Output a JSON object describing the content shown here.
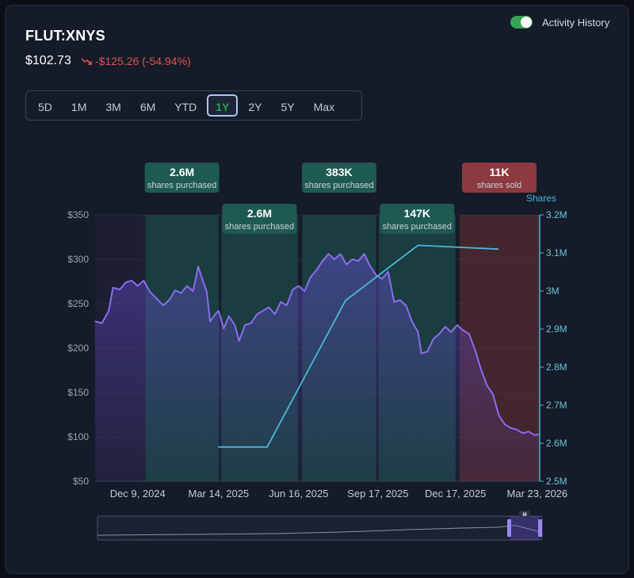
{
  "header": {
    "ticker": "FLUT:XNYS",
    "price": "$102.73",
    "change": "-$125.26 (-54.94%)",
    "change_icon": "trend-down-icon",
    "toggle_label": "Activity History",
    "toggle_on": true
  },
  "ranges": {
    "items": [
      "5D",
      "1M",
      "3M",
      "6M",
      "YTD",
      "1Y",
      "2Y",
      "5Y",
      "Max"
    ],
    "active": "1Y"
  },
  "colors": {
    "price_line": "#8b6cf0",
    "shares_line": "#4ab8d8",
    "purchase_band": "#1f5a52",
    "sold_band": "#6b2f35",
    "down": "#e05252"
  },
  "chart_data": {
    "type": "line",
    "x_ticks": [
      "Dec 9, 2024",
      "Mar 14, 2025",
      "Jun 16, 2025",
      "Sep 17, 2025",
      "Dec 17, 2025",
      "Mar 23, 2026"
    ],
    "x_range": [
      "2024-10-20",
      "2026-03-25"
    ],
    "y_left": {
      "ticks": [
        "$350",
        "$300",
        "$250",
        "$200",
        "$150",
        "$100",
        "$50"
      ],
      "range": [
        50,
        350
      ]
    },
    "y_right": {
      "label": "Shares",
      "ticks": [
        "3.2M",
        "3.1M",
        "3M",
        "2.9M",
        "2.8M",
        "2.7M",
        "2.6M",
        "2.5M"
      ],
      "range": [
        2500000,
        3200000
      ]
    },
    "series": [
      {
        "unit": "USD",
        "points": [
          [
            "2024-10-20",
            230
          ],
          [
            "2024-10-28",
            228
          ],
          [
            "2024-11-05",
            242
          ],
          [
            "2024-11-10",
            268
          ],
          [
            "2024-11-18",
            266
          ],
          [
            "2024-11-25",
            274
          ],
          [
            "2024-12-02",
            276
          ],
          [
            "2024-12-09",
            270
          ],
          [
            "2024-12-16",
            276
          ],
          [
            "2024-12-23",
            264
          ],
          [
            "2025-01-01",
            255
          ],
          [
            "2025-01-08",
            248
          ],
          [
            "2025-01-15",
            254
          ],
          [
            "2025-01-22",
            265
          ],
          [
            "2025-01-29",
            262
          ],
          [
            "2025-02-05",
            270
          ],
          [
            "2025-02-12",
            264
          ],
          [
            "2025-02-18",
            292
          ],
          [
            "2025-02-22",
            280
          ],
          [
            "2025-02-28",
            264
          ],
          [
            "2025-03-04",
            230
          ],
          [
            "2025-03-10",
            238
          ],
          [
            "2025-03-14",
            242
          ],
          [
            "2025-03-20",
            222
          ],
          [
            "2025-03-26",
            236
          ],
          [
            "2025-04-02",
            226
          ],
          [
            "2025-04-07",
            208
          ],
          [
            "2025-04-14",
            226
          ],
          [
            "2025-04-21",
            228
          ],
          [
            "2025-04-28",
            238
          ],
          [
            "2025-05-05",
            242
          ],
          [
            "2025-05-12",
            246
          ],
          [
            "2025-05-19",
            238
          ],
          [
            "2025-05-26",
            252
          ],
          [
            "2025-06-02",
            248
          ],
          [
            "2025-06-09",
            266
          ],
          [
            "2025-06-16",
            270
          ],
          [
            "2025-06-23",
            264
          ],
          [
            "2025-06-30",
            280
          ],
          [
            "2025-07-07",
            288
          ],
          [
            "2025-07-14",
            298
          ],
          [
            "2025-07-21",
            306
          ],
          [
            "2025-07-28",
            300
          ],
          [
            "2025-08-04",
            306
          ],
          [
            "2025-08-11",
            294
          ],
          [
            "2025-08-18",
            300
          ],
          [
            "2025-08-25",
            298
          ],
          [
            "2025-09-01",
            306
          ],
          [
            "2025-09-08",
            292
          ],
          [
            "2025-09-15",
            282
          ],
          [
            "2025-09-22",
            278
          ],
          [
            "2025-09-29",
            286
          ],
          [
            "2025-10-06",
            252
          ],
          [
            "2025-10-13",
            254
          ],
          [
            "2025-10-20",
            248
          ],
          [
            "2025-10-27",
            230
          ],
          [
            "2025-11-03",
            218
          ],
          [
            "2025-11-07",
            194
          ],
          [
            "2025-11-14",
            196
          ],
          [
            "2025-11-21",
            210
          ],
          [
            "2025-11-28",
            216
          ],
          [
            "2025-12-05",
            224
          ],
          [
            "2025-12-12",
            218
          ],
          [
            "2025-12-19",
            226
          ],
          [
            "2025-12-26",
            220
          ],
          [
            "2026-01-02",
            216
          ],
          [
            "2026-01-09",
            198
          ],
          [
            "2026-01-16",
            176
          ],
          [
            "2026-01-23",
            158
          ],
          [
            "2026-01-30",
            148
          ],
          [
            "2026-02-06",
            124
          ],
          [
            "2026-02-13",
            114
          ],
          [
            "2026-02-20",
            110
          ],
          [
            "2026-02-27",
            108
          ],
          [
            "2026-03-06",
            104
          ],
          [
            "2026-03-13",
            106
          ],
          [
            "2026-03-20",
            102
          ],
          [
            "2026-03-25",
            103
          ]
        ]
      },
      {
        "unit": "Shares",
        "points": [
          [
            "2025-03-14",
            2590000
          ],
          [
            "2025-05-10",
            2590000
          ],
          [
            "2025-08-10",
            2975000
          ],
          [
            "2025-11-03",
            3120000
          ],
          [
            "2026-02-05",
            3110000
          ]
        ]
      }
    ],
    "bands": [
      {
        "start": "2024-12-18",
        "end": "2025-03-14",
        "value": "2.6M",
        "label": "shares purchased",
        "kind": "purchase",
        "tier": "upper"
      },
      {
        "start": "2025-03-17",
        "end": "2025-06-15",
        "value": "2.6M",
        "label": "shares purchased",
        "kind": "purchase",
        "tier": "lower"
      },
      {
        "start": "2025-06-20",
        "end": "2025-09-15",
        "value": "383K",
        "label": "shares purchased",
        "kind": "purchase",
        "tier": "upper"
      },
      {
        "start": "2025-09-18",
        "end": "2025-12-17",
        "value": "147K",
        "label": "shares purchased",
        "kind": "purchase",
        "tier": "lower"
      },
      {
        "start": "2025-12-22",
        "end": "2026-03-25",
        "value": "11K",
        "label": "shares sold",
        "kind": "sold",
        "tier": "upper"
      }
    ]
  },
  "navigator": {
    "handle_label": "III"
  }
}
